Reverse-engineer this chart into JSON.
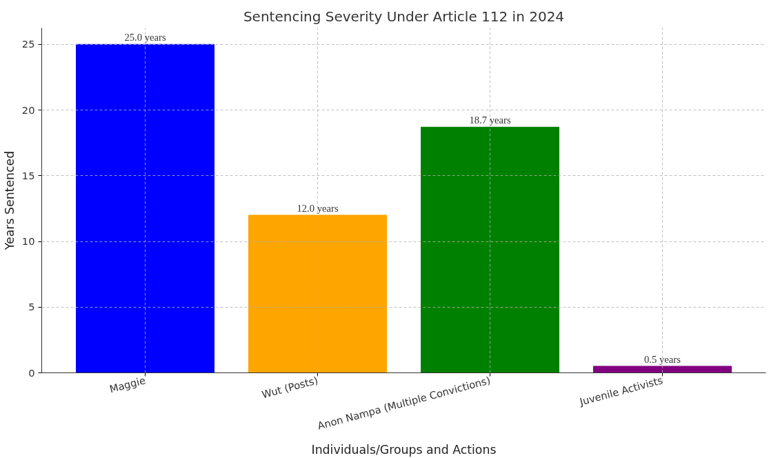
{
  "chart_data": {
    "type": "bar",
    "title": "Sentencing Severity Under Article 112 in 2024",
    "xlabel": "Individuals/Groups and Actions",
    "ylabel": "Years Sentenced",
    "categories": [
      "Maggie",
      "Wut (Posts)",
      "Anon Nampa (Multiple Convictions)",
      "Juvenile Activists"
    ],
    "values": [
      25.0,
      12.0,
      18.7,
      0.5
    ],
    "colors": [
      "#0000ff",
      "#ffa500",
      "#008000",
      "#800080"
    ],
    "value_labels": [
      "25.0 years",
      "12.0 years",
      "18.7 years",
      "0.5 years"
    ],
    "ylim": [
      0,
      26.25
    ],
    "yticks": [
      0,
      5,
      10,
      15,
      20,
      25
    ],
    "grid": true
  }
}
